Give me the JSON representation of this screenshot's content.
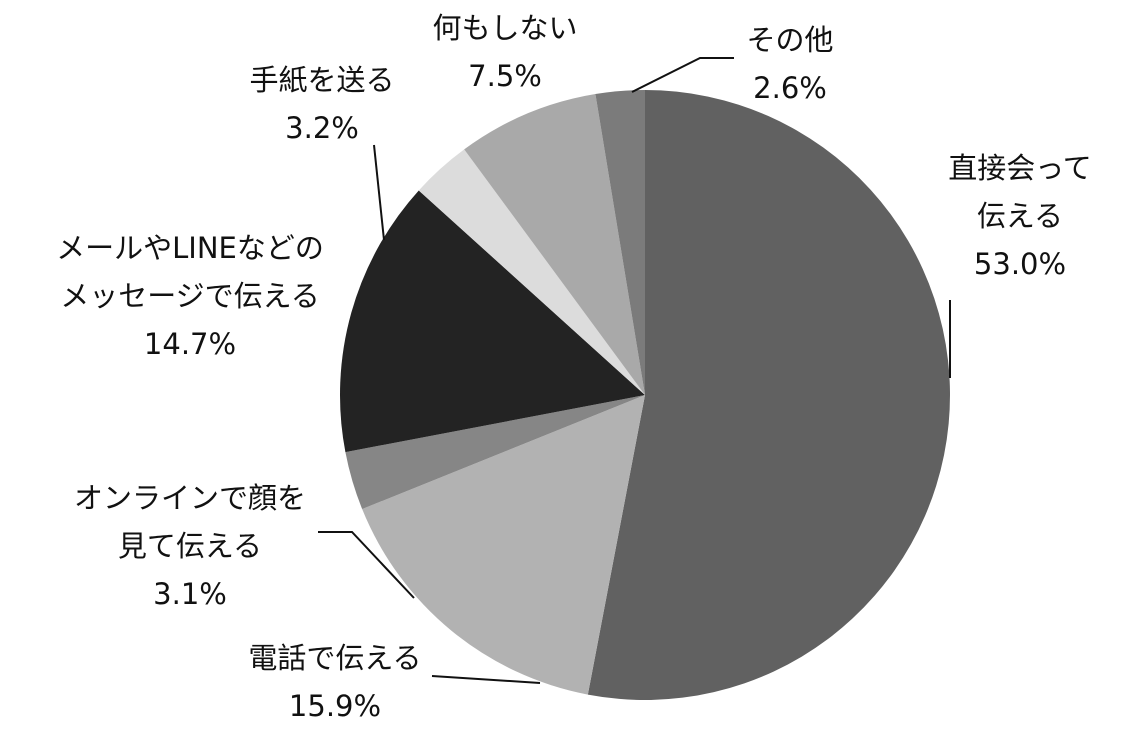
{
  "chart_data": {
    "type": "pie",
    "categories": [
      "直接会って\n伝える",
      "電話で伝える",
      "オンラインで顔を\n見て伝える",
      "メールやLINEなどの\nメッセージで伝える",
      "手紙を送る",
      "何もしない",
      "その他"
    ],
    "values": [
      53.0,
      15.9,
      3.1,
      14.7,
      3.2,
      7.5,
      2.6
    ],
    "value_labels": [
      "53.0%",
      "15.9%",
      "3.1%",
      "14.7%",
      "3.2%",
      "7.5%",
      "2.6%"
    ],
    "colors": [
      "#616161",
      "#b2b2b2",
      "#868686",
      "#232323",
      "#dcdcdc",
      "#a9a9a9",
      "#7b7b7b"
    ]
  }
}
